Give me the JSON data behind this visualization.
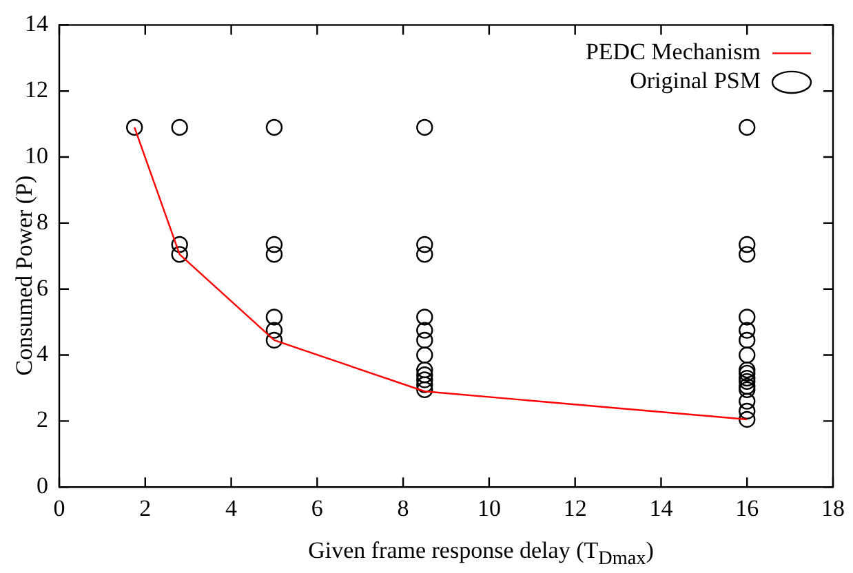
{
  "chart_data": {
    "type": "scatter",
    "xlabel": "Given frame response delay (T$_{Dmax}$)",
    "ylabel": "Consumed Power (P)",
    "xlim": [
      0,
      18
    ],
    "xticks": [
      0,
      2,
      4,
      6,
      8,
      10,
      12,
      14,
      16,
      18
    ],
    "ylim": [
      0,
      14
    ],
    "yticks": [
      0,
      2,
      4,
      6,
      8,
      10,
      12,
      14
    ],
    "grid": false,
    "legend": "top right",
    "marker": "circle",
    "series": [
      {
        "name": "PEDC Mechanism",
        "type": "line",
        "color": "#ff0000",
        "marker": "none",
        "x": [
          1.75,
          2.8,
          5,
          8.5,
          16
        ],
        "values": [
          10.9,
          7.05,
          4.45,
          2.9,
          2.05
        ]
      },
      {
        "name": "Original PSM",
        "type": "scatter",
        "color": "#000000",
        "x": [
          1.75,
          2.8,
          2.8,
          2.8,
          5,
          5,
          5,
          5,
          5,
          5,
          8.5,
          8.5,
          8.5,
          8.5,
          8.5,
          8.5,
          8.5,
          8.5,
          8.5,
          8.5,
          8.5,
          8.5,
          16,
          16,
          16,
          16,
          16,
          16,
          16,
          16,
          16,
          16,
          16,
          16,
          16,
          16,
          16,
          16
        ],
        "values": [
          10.9,
          10.9,
          7.35,
          7.05,
          10.9,
          7.35,
          7.05,
          5.15,
          4.75,
          4.45,
          10.9,
          7.35,
          7.05,
          5.15,
          4.75,
          4.45,
          4.0,
          3.55,
          3.4,
          3.25,
          3.1,
          2.95,
          10.9,
          7.35,
          7.05,
          5.15,
          4.75,
          4.45,
          4.0,
          3.55,
          3.45,
          3.3,
          3.2,
          3.05,
          2.95,
          2.6,
          2.3,
          2.05
        ]
      }
    ]
  }
}
